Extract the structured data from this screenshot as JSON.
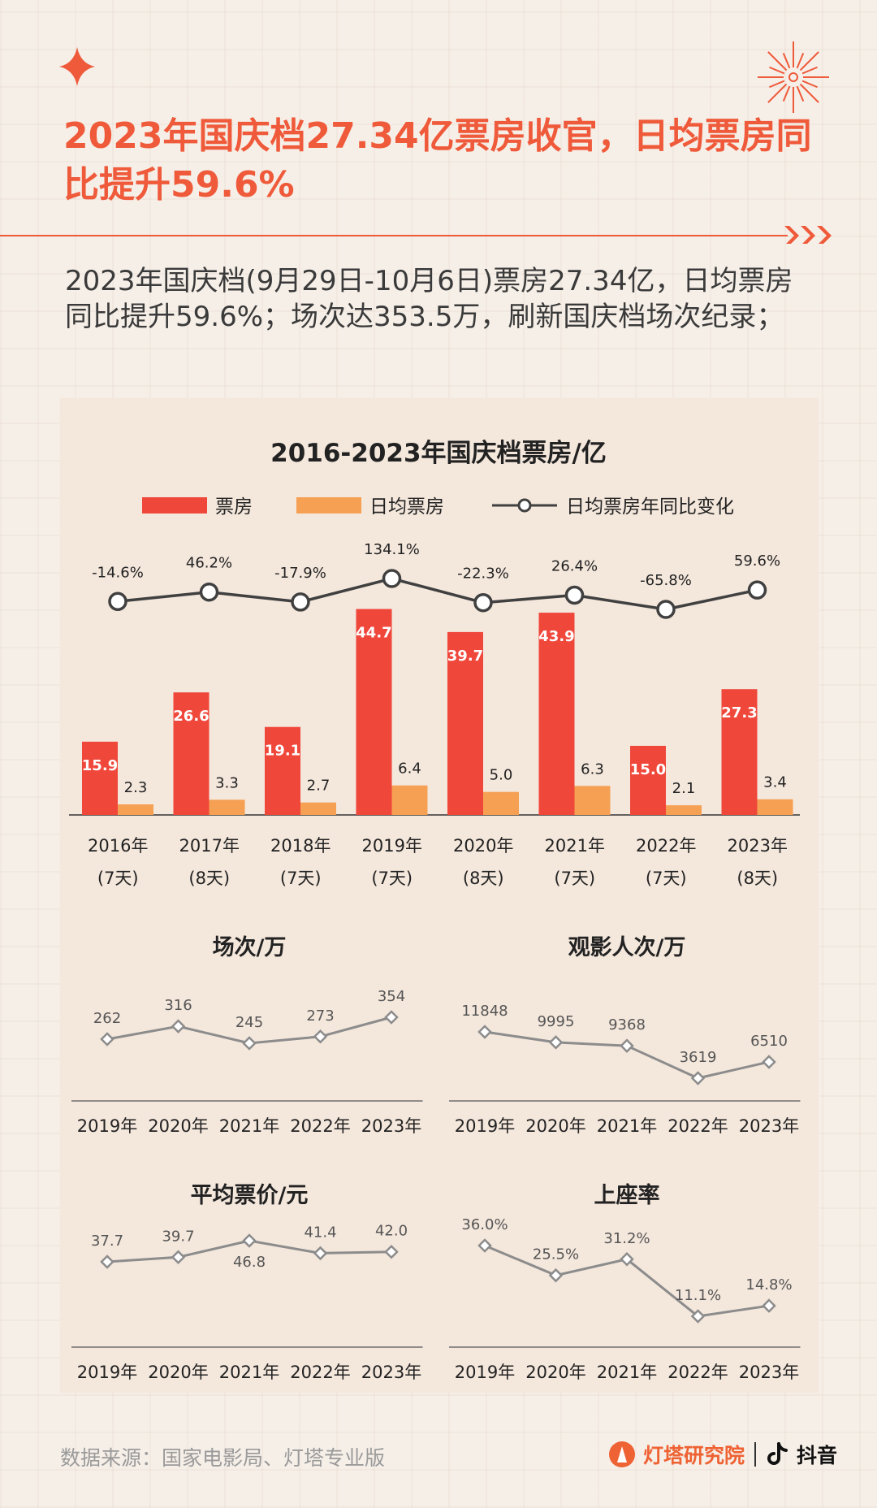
{
  "header": {
    "title": "2023年国庆档27.34亿票房收官，日均票房同比提升59.6%",
    "subtitle": "2023年国庆档(9月29日-10月6日)票房27.34亿，日均票房同比提升59.6%；场次达353.5万，刷新国庆档场次纪录；"
  },
  "footer": {
    "source": "数据来源：国家电影局、灯塔专业版",
    "brand1": "灯塔研究院",
    "brand2": "抖音"
  },
  "colors": {
    "accent": "#ef5a3a",
    "bar_box": "#f0473b",
    "bar_daily": "#f5a052",
    "line_dark": "#404040",
    "line_gray": "#8c8c8c"
  },
  "chart_data": [
    {
      "type": "bar",
      "title": "2016-2023年国庆档票房/亿",
      "categories": [
        "2016年",
        "2017年",
        "2018年",
        "2019年",
        "2020年",
        "2021年",
        "2022年",
        "2023年"
      ],
      "sub_categories": [
        "(7天)",
        "(8天)",
        "(7天)",
        "(7天)",
        "(8天)",
        "(7天)",
        "(7天)",
        "(8天)"
      ],
      "series": [
        {
          "name": "票房",
          "type": "bar",
          "color": "#f0473b",
          "values": [
            15.9,
            26.6,
            19.1,
            44.7,
            39.7,
            43.9,
            15.0,
            27.3
          ],
          "labels": [
            "15.9",
            "26.6",
            "19.1",
            "44.7",
            "39.7",
            "43.9",
            "15.0",
            "27.3"
          ]
        },
        {
          "name": "日均票房",
          "type": "bar",
          "color": "#f5a052",
          "values": [
            2.3,
            3.3,
            2.7,
            6.4,
            5.0,
            6.3,
            2.1,
            3.4
          ],
          "labels": [
            "2.3",
            "3.3",
            "2.7",
            "6.4",
            "5.0",
            "6.3",
            "2.1",
            "3.4"
          ]
        },
        {
          "name": "日均票房年同比变化",
          "type": "line",
          "color": "#404040",
          "values": [
            -14.6,
            46.2,
            -17.9,
            134.1,
            -22.3,
            26.4,
            -65.8,
            59.6
          ],
          "labels": [
            "-14.6%",
            "46.2%",
            "-17.9%",
            "134.1%",
            "-22.3%",
            "26.4%",
            "-65.8%",
            "59.6%"
          ]
        }
      ],
      "legend_position": "top"
    },
    {
      "type": "line",
      "title": "场次/万",
      "categories": [
        "2019年",
        "2020年",
        "2021年",
        "2022年",
        "2023年"
      ],
      "values": [
        262,
        316,
        245,
        273,
        354
      ],
      "labels": [
        "262",
        "316",
        "245",
        "273",
        "354"
      ]
    },
    {
      "type": "line",
      "title": "观影人次/万",
      "categories": [
        "2019年",
        "2020年",
        "2021年",
        "2022年",
        "2023年"
      ],
      "values": [
        11848,
        9995,
        9368,
        3619,
        6510
      ],
      "labels": [
        "11848",
        "9995",
        "9368",
        "3619",
        "6510"
      ]
    },
    {
      "type": "line",
      "title": "平均票价/元",
      "categories": [
        "2019年",
        "2020年",
        "2021年",
        "2022年",
        "2023年"
      ],
      "values": [
        37.7,
        39.7,
        46.8,
        41.4,
        42.0
      ],
      "labels": [
        "37.7",
        "39.7",
        "46.8",
        "41.4",
        "42.0"
      ]
    },
    {
      "type": "line",
      "title": "上座率",
      "categories": [
        "2019年",
        "2020年",
        "2021年",
        "2022年",
        "2023年"
      ],
      "values": [
        36.0,
        25.5,
        31.2,
        11.1,
        14.8
      ],
      "labels": [
        "36.0%",
        "25.5%",
        "31.2%",
        "11.1%",
        "14.8%"
      ]
    }
  ]
}
